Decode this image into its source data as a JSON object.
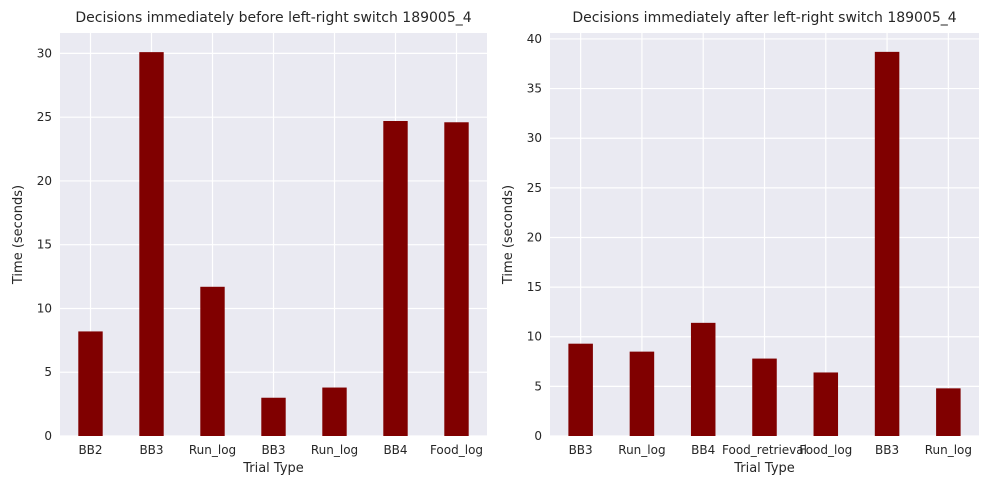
{
  "chart_data": [
    {
      "type": "bar",
      "title": "Decisions immediately before left-right switch 189005_4",
      "xlabel": "Trial Type",
      "ylabel": "Time (seconds)",
      "categories": [
        "BB2",
        "BB3",
        "Run_log",
        "BB3",
        "Run_log",
        "BB4",
        "Food_log"
      ],
      "values": [
        8.2,
        30.1,
        11.7,
        3.0,
        3.8,
        24.7,
        24.6
      ],
      "ylim": [
        0,
        31.6
      ],
      "yticks": [
        0,
        5,
        10,
        15,
        20,
        25,
        30
      ],
      "bar_color": "#800000",
      "background": "#EAEAF2",
      "grid": true
    },
    {
      "type": "bar",
      "title": "Decisions immediately after left-right switch 189005_4",
      "xlabel": "Trial Type",
      "ylabel": "Time (seconds)",
      "categories": [
        "BB3",
        "Run_log",
        "BB4",
        "Food_retrieval",
        "Food_log",
        "BB3",
        "Run_log"
      ],
      "values": [
        9.3,
        8.5,
        11.4,
        7.8,
        6.4,
        38.7,
        4.8
      ],
      "ylim": [
        0,
        40.6
      ],
      "yticks": [
        0,
        5,
        10,
        15,
        20,
        25,
        30,
        35,
        40
      ],
      "bar_color": "#800000",
      "background": "#EAEAF2",
      "grid": true
    }
  ]
}
